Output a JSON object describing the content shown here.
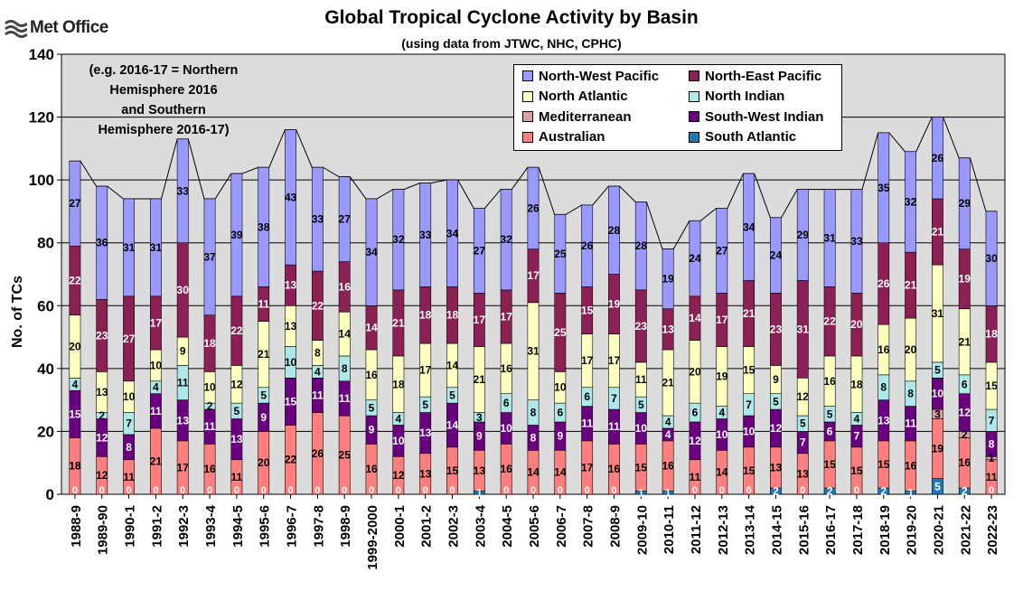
{
  "logo_text": "Met Office",
  "chart_data": {
    "type": "bar",
    "stacked": true,
    "title": "Global Tropical Cyclone Activity by Basin",
    "subtitle": "(using data from JTWC, NHC, CPHC)",
    "ylabel": "No. of TCs",
    "xlabel": "",
    "ylim": [
      0,
      140
    ],
    "yticks": [
      0,
      20,
      40,
      60,
      80,
      100,
      120,
      140
    ],
    "grid": true,
    "legend_position": "top-right",
    "annotation": "(e.g. 2016-17 = Northern Hemisphere 2016 and Southern Hemisphere 2016-17)",
    "annotation_lines": [
      "(e.g. 2016-17 = Northern",
      "Hemisphere 2016",
      "and Southern",
      "Hemisphere 2016-17)"
    ],
    "categories": [
      "1988-9",
      "1989-90",
      "1990-1",
      "1991-2",
      "1992-3",
      "1993-4",
      "1994-5",
      "1995-6",
      "1996-7",
      "1997-8",
      "1998-9",
      "1999-2000",
      "2000-1",
      "2001-2",
      "2002-3",
      "2003-4",
      "2004-5",
      "2005-6",
      "2006-7",
      "2007-8",
      "2008-9",
      "2009-10",
      "2010-11",
      "2011-12",
      "2012-13",
      "2013-14",
      "2014-15",
      "2015-16",
      "2016-17",
      "2017-18",
      "2018-19",
      "2019-20",
      "2020-21",
      "2021-22",
      "2022-23"
    ],
    "series": [
      {
        "name": "South Atlantic",
        "color": "#1f77b4",
        "values": [
          0,
          0,
          0,
          0,
          0,
          0,
          0,
          0,
          0,
          0,
          0,
          0,
          0,
          0,
          0,
          1,
          0,
          0,
          0,
          0,
          0,
          1,
          1,
          0,
          0,
          0,
          2,
          0,
          2,
          0,
          2,
          1,
          5,
          2,
          0
        ]
      },
      {
        "name": "Australian",
        "color": "#ff7f7f",
        "values": [
          18,
          12,
          11,
          21,
          17,
          16,
          11,
          20,
          22,
          26,
          25,
          16,
          12,
          13,
          15,
          13,
          16,
          14,
          14,
          17,
          16,
          15,
          16,
          11,
          14,
          15,
          13,
          13,
          15,
          15,
          15,
          16,
          19,
          16,
          11
        ]
      },
      {
        "name": "Mediterranean",
        "color": "#d8a0a0",
        "values": [
          0,
          0,
          0,
          0,
          0,
          0,
          0,
          0,
          0,
          0,
          0,
          0,
          0,
          0,
          0,
          0,
          0,
          0,
          0,
          0,
          0,
          0,
          0,
          0,
          0,
          0,
          0,
          0,
          0,
          0,
          0,
          0,
          3,
          2,
          1
        ]
      },
      {
        "name": "South-West Indian",
        "color": "#6a0080",
        "values": [
          15,
          12,
          8,
          11,
          13,
          11,
          13,
          9,
          15,
          11,
          11,
          9,
          10,
          13,
          14,
          9,
          10,
          8,
          9,
          11,
          11,
          10,
          4,
          12,
          10,
          10,
          12,
          7,
          6,
          7,
          13,
          11,
          10,
          12,
          8
        ]
      },
      {
        "name": "North Indian",
        "color": "#aee8e8",
        "values": [
          4,
          2,
          7,
          4,
          11,
          2,
          5,
          5,
          10,
          4,
          8,
          5,
          4,
          5,
          5,
          3,
          6,
          8,
          6,
          6,
          7,
          5,
          4,
          6,
          4,
          7,
          5,
          5,
          5,
          4,
          8,
          8,
          5,
          6,
          7
        ]
      },
      {
        "name": "North Atlantic",
        "color": "#ffffc0",
        "values": [
          20,
          13,
          10,
          10,
          9,
          10,
          12,
          21,
          13,
          8,
          14,
          16,
          18,
          17,
          14,
          21,
          16,
          31,
          10,
          17,
          17,
          11,
          21,
          20,
          19,
          15,
          9,
          12,
          16,
          18,
          16,
          20,
          31,
          21,
          15
        ]
      },
      {
        "name": "North-East Pacific",
        "color": "#8c2055",
        "values": [
          22,
          23,
          27,
          17,
          30,
          18,
          22,
          11,
          13,
          22,
          16,
          14,
          21,
          18,
          18,
          17,
          17,
          17,
          25,
          15,
          19,
          23,
          13,
          14,
          17,
          21,
          23,
          31,
          22,
          20,
          26,
          21,
          21,
          19,
          18
        ]
      },
      {
        "name": "North-West Pacific",
        "color": "#9999ff",
        "values": [
          27,
          36,
          31,
          31,
          33,
          37,
          39,
          38,
          43,
          33,
          27,
          34,
          32,
          33,
          34,
          27,
          32,
          26,
          25,
          26,
          28,
          28,
          19,
          24,
          27,
          34,
          24,
          29,
          31,
          33,
          35,
          32,
          26,
          29,
          30
        ]
      }
    ],
    "legend": [
      "North-West Pacific",
      "North-East Pacific",
      "North Atlantic",
      "North Indian",
      "Mediterranean",
      "South-West Indian",
      "Australian",
      "South Atlantic"
    ]
  }
}
